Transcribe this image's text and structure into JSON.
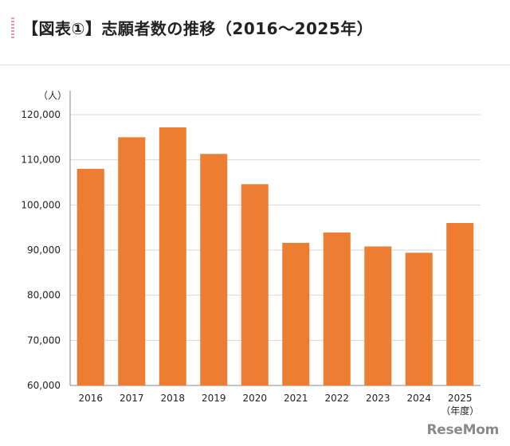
{
  "header": {
    "title": "【図表①】志願者数の推移（2016〜2025年）"
  },
  "watermark": {
    "text": "ReseMom"
  },
  "colors": {
    "bar": "#ed7d31",
    "grid": "#d9d9d9",
    "axis": "#888888"
  },
  "chart_data": {
    "type": "bar",
    "title": "【図表①】志願者数の推移（2016〜2025年）",
    "ylabel": "（人）",
    "xlabel": "（年度）",
    "ylim": [
      60000,
      120000
    ],
    "yticks": [
      "120,000",
      "110,000",
      "100,000",
      "90,000",
      "80,000",
      "70,000",
      "60,000"
    ],
    "ytick_values": [
      120000,
      110000,
      100000,
      90000,
      80000,
      70000,
      60000
    ],
    "categories": [
      "2016",
      "2017",
      "2018",
      "2019",
      "2020",
      "2021",
      "2022",
      "2023",
      "2024",
      "2025"
    ],
    "values": [
      108000,
      115000,
      117200,
      111300,
      104600,
      91600,
      93900,
      90800,
      89400,
      96000
    ],
    "grid": true,
    "legend": "none"
  }
}
